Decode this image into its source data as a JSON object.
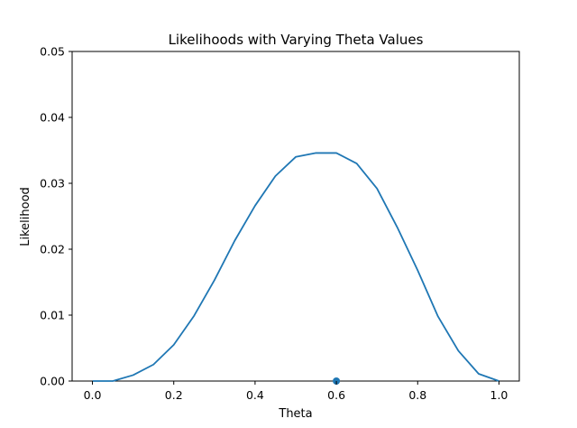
{
  "chart_data": {
    "type": "line",
    "title": "Likelihoods with Varying Theta Values",
    "xlabel": "Theta",
    "ylabel": "Likelihood",
    "xlim": [
      -0.05,
      1.05
    ],
    "ylim": [
      0.0,
      0.05
    ],
    "x_ticks": [
      "0.0",
      "0.2",
      "0.4",
      "0.6",
      "0.8",
      "1.0"
    ],
    "y_ticks": [
      "0.00",
      "0.01",
      "0.02",
      "0.03",
      "0.04",
      "0.05"
    ],
    "grid": false,
    "line_color": "#1f77b4",
    "series": [
      {
        "x": [
          0.0,
          0.05,
          0.1,
          0.15,
          0.2,
          0.25,
          0.3,
          0.35,
          0.4,
          0.45,
          0.5,
          0.55,
          0.6,
          0.65,
          0.7,
          0.75,
          0.8,
          0.85,
          0.9,
          0.95,
          1.0
        ],
        "y": [
          0.0,
          0.0,
          0.0009,
          0.0025,
          0.0055,
          0.0099,
          0.0153,
          0.0213,
          0.0266,
          0.0311,
          0.034,
          0.0346,
          0.0346,
          0.033,
          0.0292,
          0.0233,
          0.0168,
          0.0098,
          0.0046,
          0.0011,
          0.0
        ]
      }
    ],
    "points": [
      {
        "x": 0.6,
        "y": 0.0
      }
    ]
  }
}
